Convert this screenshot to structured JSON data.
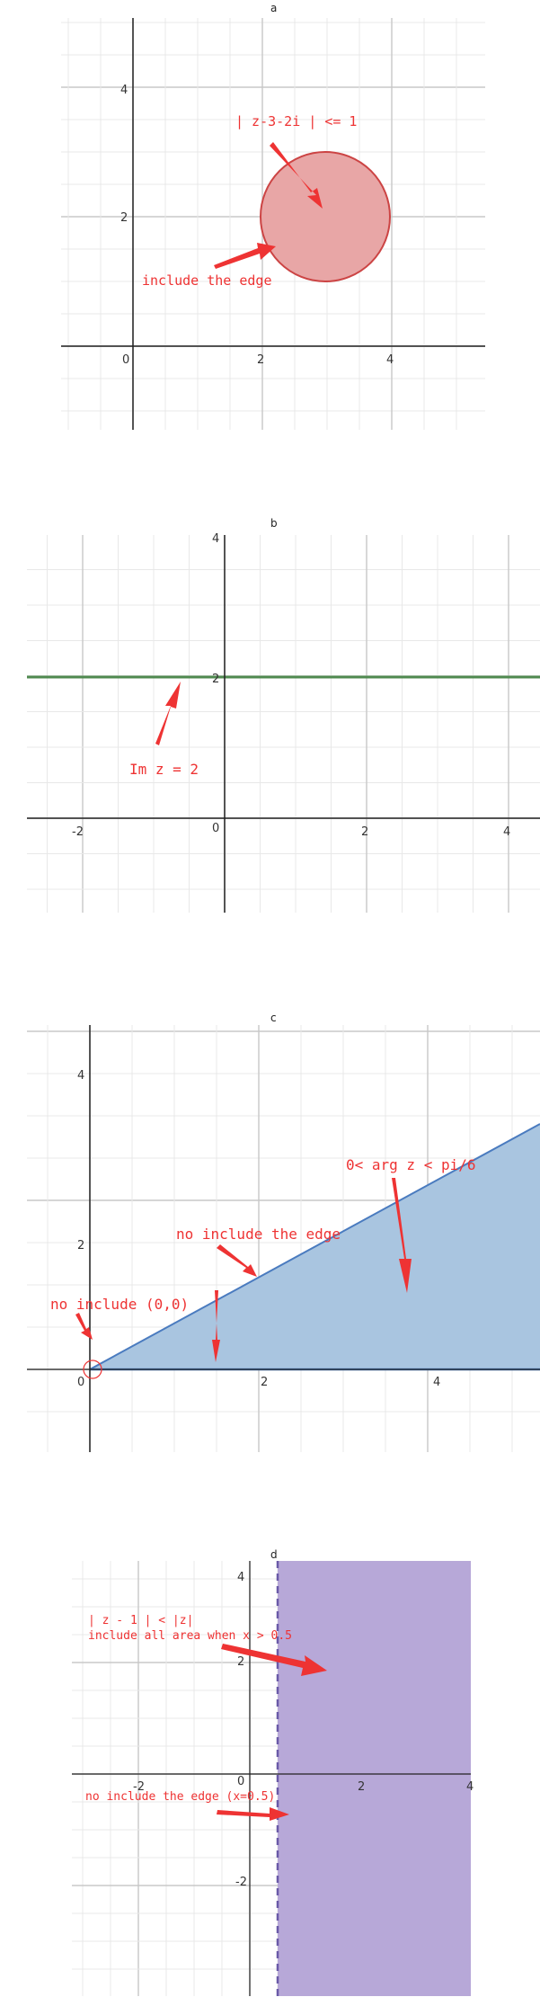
{
  "panels": {
    "a": {
      "title": "a",
      "x_ticks": [
        "0",
        "2",
        "4"
      ],
      "y_ticks": [
        "2",
        "4"
      ],
      "annotations": [
        "| z-3-2i | <= 1",
        "include the edge"
      ],
      "circle": {
        "center": [
          3,
          2
        ],
        "radius": 1,
        "fill": "#e8a6a6",
        "stroke": "#cc4444"
      }
    },
    "b": {
      "title": "b",
      "x_ticks": [
        "-2",
        "0",
        "2",
        "4"
      ],
      "y_ticks": [
        "2",
        "4"
      ],
      "annotations": [
        "Im z = 2"
      ],
      "line": {
        "y": 2,
        "color": "#4f8a4f"
      }
    },
    "c": {
      "title": "c",
      "x_ticks": [
        "0",
        "2",
        "4"
      ],
      "y_ticks": [
        "2",
        "4"
      ],
      "annotations": [
        "0< arg z < pi/6",
        "no include the edge",
        "no include (0,0)"
      ],
      "region": {
        "type": "wedge",
        "angle_from": 0,
        "angle_to": "pi/6",
        "fill": "#a9c5e0",
        "stroke": "#4a7bbf"
      }
    },
    "d": {
      "title": "d",
      "x_ticks": [
        "-2",
        "0",
        "2",
        "4"
      ],
      "y_ticks": [
        "-2",
        "2",
        "4"
      ],
      "annotations": [
        "| z - 1 | < |z|",
        "include all area when x > 0.5",
        "no include the edge (x=0.5)"
      ],
      "region": {
        "type": "half-plane",
        "x_gt": 0.5,
        "fill": "#b7a8d8",
        "stroke": "#6a5aa8"
      }
    }
  },
  "colors": {
    "arrow": "#ee3333",
    "grid_minor": "#e8e8e8",
    "grid_major": "#c8c8c8",
    "axis": "#222222"
  }
}
